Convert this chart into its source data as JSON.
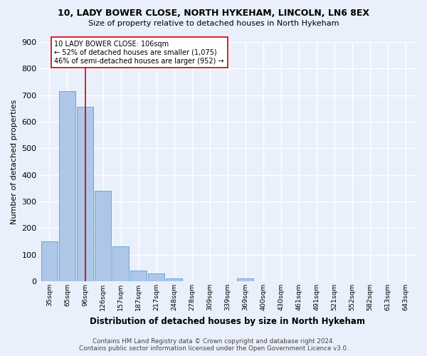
{
  "title1": "10, LADY BOWER CLOSE, NORTH HYKEHAM, LINCOLN, LN6 8EX",
  "title2": "Size of property relative to detached houses in North Hykeham",
  "xlabel": "Distribution of detached houses by size in North Hykeham",
  "ylabel": "Number of detached properties",
  "footnote": "Contains HM Land Registry data © Crown copyright and database right 2024.\nContains public sector information licensed under the Open Government Licence v3.0.",
  "bins": [
    "35sqm",
    "65sqm",
    "96sqm",
    "126sqm",
    "157sqm",
    "187sqm",
    "217sqm",
    "248sqm",
    "278sqm",
    "309sqm",
    "339sqm",
    "369sqm",
    "400sqm",
    "430sqm",
    "461sqm",
    "491sqm",
    "521sqm",
    "552sqm",
    "582sqm",
    "613sqm",
    "643sqm"
  ],
  "values": [
    150,
    715,
    655,
    340,
    130,
    40,
    30,
    10,
    0,
    0,
    0,
    10,
    0,
    0,
    0,
    0,
    0,
    0,
    0,
    0,
    0
  ],
  "bar_color": "#aec6e8",
  "bar_edge_color": "#5a9fd4",
  "vline_x": 2,
  "vline_color": "#cc0000",
  "annotation_text": "10 LADY BOWER CLOSE: 106sqm\n← 52% of detached houses are smaller (1,075)\n46% of semi-detached houses are larger (952) →",
  "annotation_box_color": "#ffffff",
  "annotation_box_edge": "#cc0000",
  "ylim": [
    0,
    900
  ],
  "yticks": [
    0,
    100,
    200,
    300,
    400,
    500,
    600,
    700,
    800,
    900
  ],
  "bg_color": "#eaf0fb",
  "grid_color": "#ffffff"
}
